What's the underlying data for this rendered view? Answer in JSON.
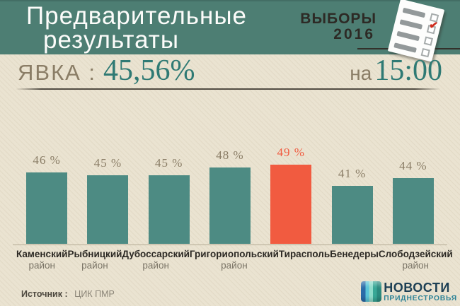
{
  "header": {
    "title_line1": "Предварительные",
    "title_line2": "результаты",
    "badge_line1": "ВЫБОРЫ",
    "badge_line2": "2016"
  },
  "icons": {
    "ballot": "ballot-paper-with-red-checkmark",
    "check_glyph": "✔",
    "logo_mark": "news-pridnestrovya-striped-square"
  },
  "turnout": {
    "label": "ЯВКА :",
    "value": "45,56%",
    "time_prefix": "на",
    "time": "15:00"
  },
  "chart_data": {
    "type": "bar",
    "title": "Предварительные результаты — явка по районам",
    "categories": [
      "Каменский район",
      "Рыбницкий район",
      "Дубоссарский район",
      "Григориопольский район",
      "Тирасполь",
      "Бенедеры",
      "Слободзейский район"
    ],
    "category_lines": [
      [
        "Каменский",
        "район"
      ],
      [
        "Рыбницкий",
        "район"
      ],
      [
        "Дубоссарский",
        "район"
      ],
      [
        "Григориопольский",
        "район"
      ],
      [
        "Тирасполь",
        ""
      ],
      [
        "Бенедеры",
        ""
      ],
      [
        "Слободзейский",
        "район"
      ]
    ],
    "values": [
      46,
      45,
      45,
      48,
      49,
      41,
      44
    ],
    "value_suffix": " %",
    "highlight_index": 4,
    "xlabel": "",
    "ylabel": "",
    "ylim": [
      0,
      100
    ],
    "grid": false,
    "legend": false
  },
  "footer": {
    "source_label": "Источник :",
    "source_value": "ЦИК ПМР",
    "logo_line1": "НОВОСТИ",
    "logo_line2": "ПРИДНЕСТРОВЬЯ"
  },
  "colors": {
    "header": "#4d7e73",
    "bg": "#eae3d1",
    "bar": "#4d8b83",
    "highlight": "#f15b40",
    "accent": "#2f7a74",
    "taupe": "#8a7d66"
  }
}
